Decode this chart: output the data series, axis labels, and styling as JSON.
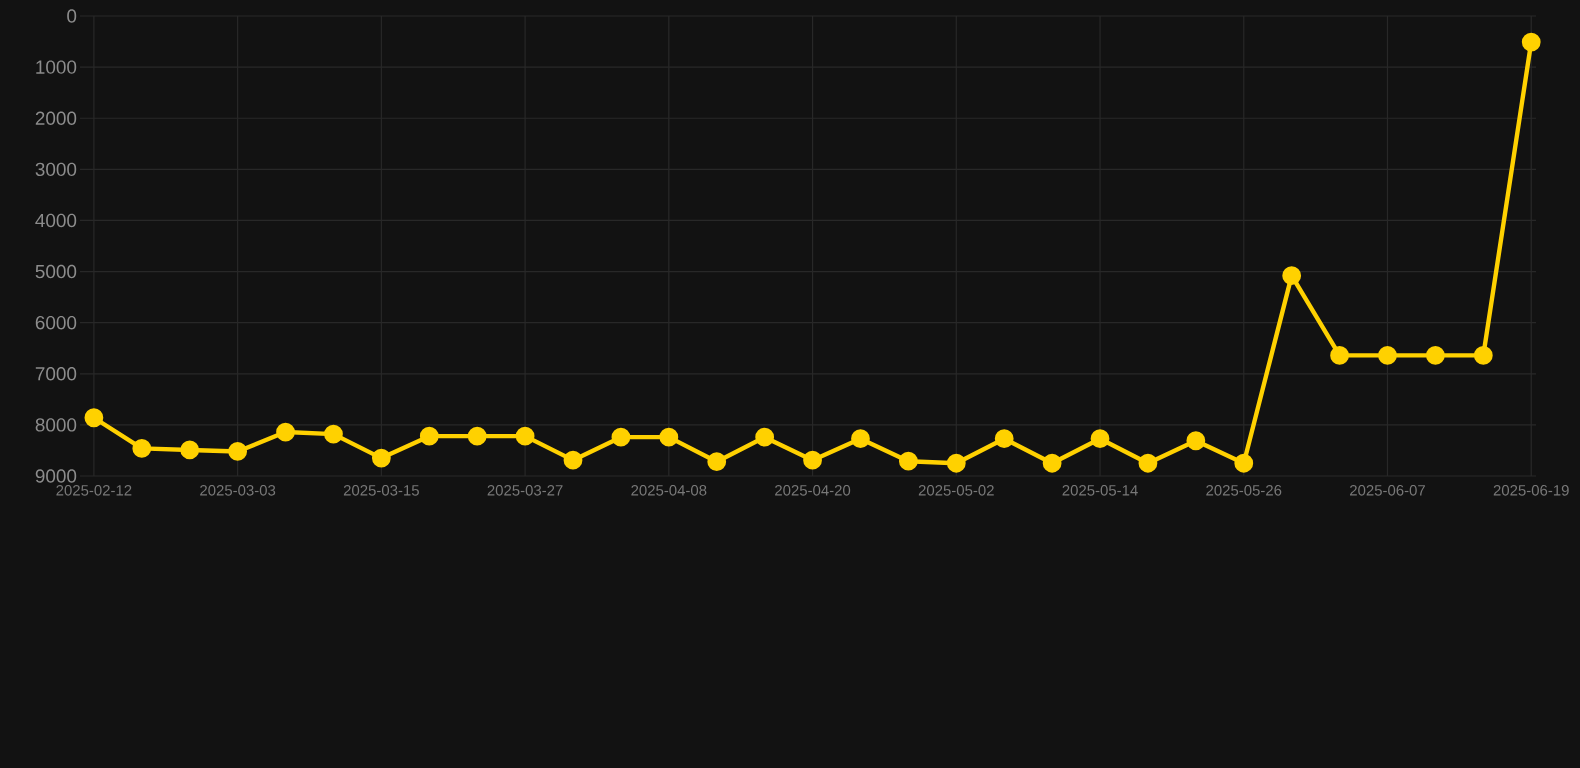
{
  "chart_data": {
    "type": "line",
    "categories": [
      "2025-02-12",
      null,
      null,
      "2025-03-03",
      null,
      null,
      "2025-03-15",
      null,
      null,
      "2025-03-27",
      null,
      null,
      "2025-04-08",
      null,
      null,
      "2025-04-20",
      null,
      null,
      "2025-05-02",
      null,
      null,
      "2025-05-14",
      null,
      null,
      "2025-05-26",
      null,
      null,
      "2025-06-07",
      null,
      null,
      "2025-06-19"
    ],
    "series": [
      {
        "color": "#ffd100",
        "values": [
          7860,
          8460,
          8490,
          8520,
          8140,
          8180,
          8650,
          8220,
          8220,
          8220,
          8690,
          8240,
          8240,
          8720,
          8240,
          8690,
          8270,
          8710,
          8750,
          8270,
          8750,
          8270,
          8750,
          8310,
          8750,
          5080,
          6640,
          6640,
          6640,
          6640,
          510
        ]
      }
    ],
    "ylim": [
      9000,
      0
    ],
    "yticks": [
      0,
      1000,
      2000,
      3000,
      4000,
      5000,
      6000,
      7000,
      8000,
      9000
    ],
    "grid": true,
    "marker": "circle",
    "line_style": "solid"
  }
}
